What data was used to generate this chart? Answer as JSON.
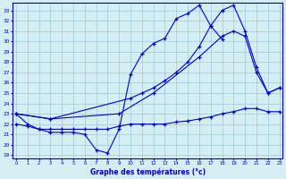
{
  "xlabel": "Graphe des températures (°c)",
  "xlim": [
    -0.3,
    23.3
  ],
  "ylim": [
    18.7,
    33.7
  ],
  "yticks": [
    19,
    20,
    21,
    22,
    23,
    24,
    25,
    26,
    27,
    28,
    29,
    30,
    31,
    32,
    33
  ],
  "xticks": [
    0,
    1,
    2,
    3,
    4,
    5,
    6,
    7,
    8,
    9,
    10,
    11,
    12,
    13,
    14,
    15,
    16,
    17,
    18,
    19,
    20,
    21,
    22,
    23
  ],
  "bg_color": "#d4eef4",
  "grid_color": "#9dc8d8",
  "line_color": "#0000cc",
  "line1_x": [
    0,
    1,
    2,
    3,
    4,
    5,
    6,
    7,
    8,
    9,
    10,
    11,
    12,
    13,
    14,
    15,
    16,
    17,
    18
  ],
  "line1_y": [
    23.0,
    22.0,
    21.5,
    21.2,
    21.2,
    21.2,
    21.0,
    19.5,
    19.2,
    21.5,
    26.8,
    28.8,
    29.8,
    30.3,
    32.2,
    32.7,
    33.5,
    31.5,
    30.2
  ],
  "line2_x": [
    0,
    1,
    2,
    3,
    4,
    5,
    6,
    7,
    8,
    9,
    10,
    11,
    12,
    13,
    14,
    15,
    16,
    17,
    18,
    19,
    20,
    21,
    22,
    23
  ],
  "line2_y": [
    22.0,
    21.8,
    21.5,
    21.5,
    21.5,
    21.5,
    21.5,
    21.5,
    21.5,
    21.8,
    22.0,
    22.0,
    22.0,
    22.0,
    22.2,
    22.3,
    22.5,
    22.7,
    23.0,
    23.2,
    23.5,
    23.5,
    23.2,
    23.2
  ],
  "line3_x": [
    0,
    3,
    10,
    11,
    12,
    13,
    14,
    15,
    16,
    17,
    18,
    19,
    20,
    21,
    22,
    23
  ],
  "line3_y": [
    23.0,
    22.5,
    24.5,
    25.0,
    25.5,
    26.2,
    27.0,
    28.0,
    29.5,
    31.5,
    33.0,
    33.5,
    31.0,
    27.5,
    25.0,
    25.5
  ],
  "line4_x": [
    0,
    3,
    9,
    12,
    16,
    18,
    19,
    20,
    21,
    22,
    23
  ],
  "line4_y": [
    23.0,
    22.5,
    23.0,
    25.0,
    28.5,
    30.5,
    31.0,
    30.5,
    27.0,
    25.0,
    25.5
  ]
}
